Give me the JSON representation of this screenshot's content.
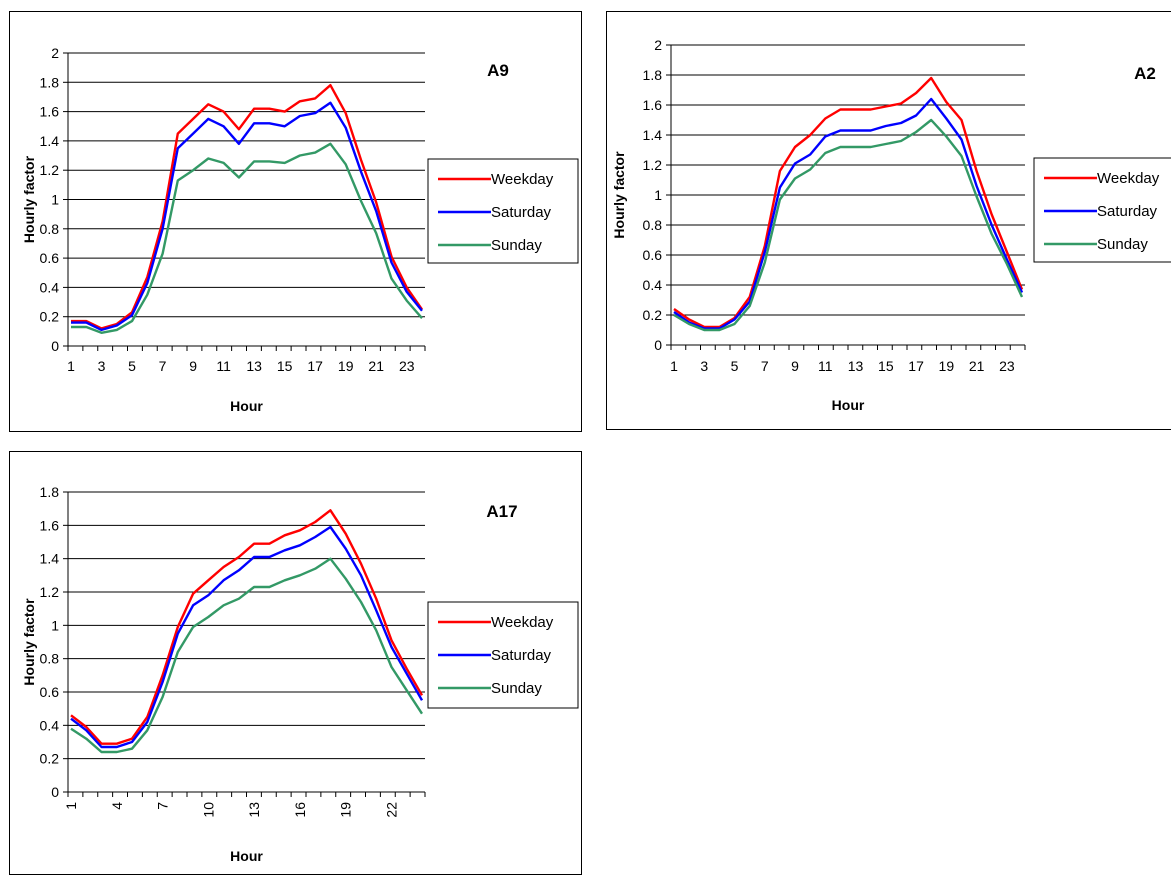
{
  "chart_data": [
    {
      "type": "line",
      "title": "A9",
      "xlabel": "Hour",
      "ylabel": "Hourly factor",
      "ylim": [
        0,
        2
      ],
      "yticks": [
        "0",
        "0.2",
        "0.4",
        "0.6",
        "0.8",
        "1",
        "1.2",
        "1.4",
        "1.6",
        "1.8",
        "2"
      ],
      "x": [
        1,
        2,
        3,
        4,
        5,
        6,
        7,
        8,
        9,
        10,
        11,
        12,
        13,
        14,
        15,
        16,
        17,
        18,
        19,
        20,
        21,
        22,
        23,
        24
      ],
      "xtick_labels": [
        "1",
        "3",
        "5",
        "7",
        "9",
        "11",
        "13",
        "15",
        "17",
        "19",
        "21",
        "23"
      ],
      "xtick_rotated": false,
      "legend_position": "right",
      "grid": true,
      "series": [
        {
          "name": "Weekday",
          "color": "#ff0000",
          "values": [
            0.17,
            0.17,
            0.12,
            0.15,
            0.23,
            0.47,
            0.85,
            1.45,
            1.55,
            1.65,
            1.6,
            1.48,
            1.62,
            1.62,
            1.6,
            1.67,
            1.69,
            1.78,
            1.59,
            1.27,
            0.98,
            0.61,
            0.4,
            0.25
          ]
        },
        {
          "name": "Saturday",
          "color": "#0000ff",
          "values": [
            0.16,
            0.16,
            0.11,
            0.14,
            0.21,
            0.43,
            0.8,
            1.35,
            1.45,
            1.55,
            1.5,
            1.38,
            1.52,
            1.52,
            1.5,
            1.57,
            1.59,
            1.66,
            1.49,
            1.19,
            0.92,
            0.57,
            0.37,
            0.24
          ]
        },
        {
          "name": "Sunday",
          "color": "#339966",
          "values": [
            0.13,
            0.13,
            0.09,
            0.11,
            0.17,
            0.35,
            0.63,
            1.13,
            1.2,
            1.28,
            1.25,
            1.15,
            1.26,
            1.26,
            1.25,
            1.3,
            1.32,
            1.38,
            1.24,
            0.99,
            0.77,
            0.46,
            0.31,
            0.19
          ]
        }
      ]
    },
    {
      "type": "line",
      "title": "A2",
      "xlabel": "Hour",
      "ylabel": "Hourly factor",
      "ylim": [
        0,
        2
      ],
      "yticks": [
        "0",
        "0.2",
        "0.4",
        "0.6",
        "0.8",
        "1",
        "1.2",
        "1.4",
        "1.6",
        "1.8",
        "2"
      ],
      "x": [
        1,
        2,
        3,
        4,
        5,
        6,
        7,
        8,
        9,
        10,
        11,
        12,
        13,
        14,
        15,
        16,
        17,
        18,
        19,
        20,
        21,
        22,
        23,
        24
      ],
      "xtick_labels": [
        "1",
        "3",
        "5",
        "7",
        "9",
        "11",
        "13",
        "15",
        "17",
        "19",
        "21",
        "23"
      ],
      "xtick_rotated": false,
      "legend_position": "right",
      "grid": true,
      "series": [
        {
          "name": "Weekday",
          "color": "#ff0000",
          "values": [
            0.24,
            0.17,
            0.12,
            0.12,
            0.18,
            0.32,
            0.66,
            1.16,
            1.32,
            1.4,
            1.51,
            1.57,
            1.57,
            1.57,
            1.59,
            1.61,
            1.68,
            1.78,
            1.62,
            1.5,
            1.16,
            0.87,
            0.62,
            0.37
          ]
        },
        {
          "name": "Saturday",
          "color": "#0000ff",
          "values": [
            0.22,
            0.15,
            0.11,
            0.11,
            0.17,
            0.29,
            0.62,
            1.05,
            1.21,
            1.27,
            1.39,
            1.43,
            1.43,
            1.43,
            1.46,
            1.48,
            1.53,
            1.64,
            1.51,
            1.37,
            1.06,
            0.8,
            0.57,
            0.35
          ]
        },
        {
          "name": "Sunday",
          "color": "#339966",
          "values": [
            0.2,
            0.14,
            0.1,
            0.1,
            0.14,
            0.26,
            0.55,
            0.97,
            1.11,
            1.17,
            1.28,
            1.32,
            1.32,
            1.32,
            1.34,
            1.36,
            1.42,
            1.5,
            1.39,
            1.26,
            0.99,
            0.74,
            0.54,
            0.32
          ]
        }
      ]
    },
    {
      "type": "line",
      "title": "A17",
      "xlabel": "Hour",
      "ylabel": "Hourly factor",
      "ylim": [
        0,
        1.8
      ],
      "yticks": [
        "0",
        "0.2",
        "0.4",
        "0.6",
        "0.8",
        "1",
        "1.2",
        "1.4",
        "1.6",
        "1.8"
      ],
      "x": [
        1,
        2,
        3,
        4,
        5,
        6,
        7,
        8,
        9,
        10,
        11,
        12,
        13,
        14,
        15,
        16,
        17,
        18,
        19,
        20,
        21,
        22,
        23,
        24
      ],
      "xtick_labels": [
        "1",
        "4",
        "7",
        "10",
        "13",
        "16",
        "19",
        "22"
      ],
      "xtick_rotated": true,
      "legend_position": "right",
      "grid": true,
      "series": [
        {
          "name": "Weekday",
          "color": "#ff0000",
          "values": [
            0.46,
            0.39,
            0.29,
            0.29,
            0.32,
            0.45,
            0.7,
            0.99,
            1.19,
            1.27,
            1.35,
            1.41,
            1.49,
            1.49,
            1.54,
            1.57,
            1.62,
            1.69,
            1.55,
            1.37,
            1.16,
            0.91,
            0.74,
            0.58
          ]
        },
        {
          "name": "Saturday",
          "color": "#0000ff",
          "values": [
            0.44,
            0.37,
            0.27,
            0.27,
            0.3,
            0.42,
            0.66,
            0.95,
            1.12,
            1.18,
            1.27,
            1.33,
            1.41,
            1.41,
            1.45,
            1.48,
            1.53,
            1.59,
            1.46,
            1.3,
            1.09,
            0.87,
            0.71,
            0.55
          ]
        },
        {
          "name": "Sunday",
          "color": "#339966",
          "values": [
            0.38,
            0.32,
            0.24,
            0.24,
            0.26,
            0.37,
            0.57,
            0.84,
            0.99,
            1.05,
            1.12,
            1.16,
            1.23,
            1.23,
            1.27,
            1.3,
            1.34,
            1.4,
            1.28,
            1.14,
            0.97,
            0.75,
            0.61,
            0.47
          ]
        }
      ]
    }
  ]
}
